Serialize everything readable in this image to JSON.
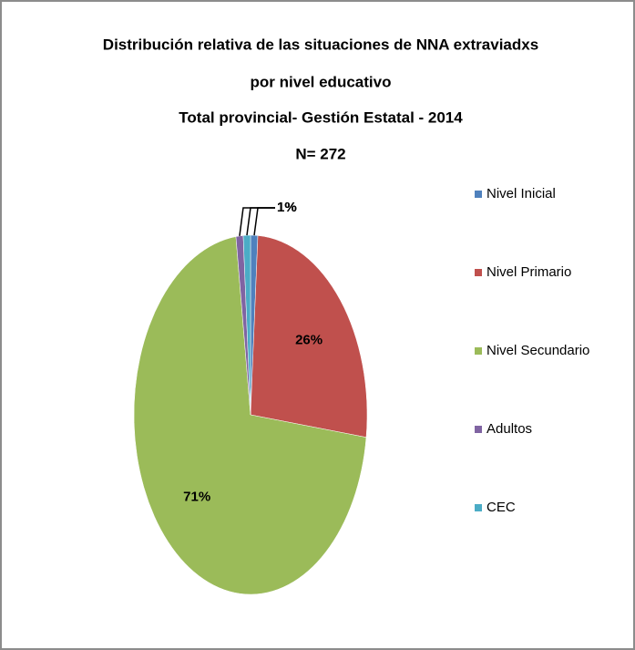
{
  "chart_data": {
    "type": "pie",
    "title": [
      "Distribución relativa de las situaciones de  NNA extraviadxs",
      "por nivel educativo",
      "Total provincial- Gestión Estatal - 2014",
      "N= 272"
    ],
    "categories": [
      "Nivel Inicial",
      "Nivel Primario",
      "Nivel Secundario",
      "Adultos",
      "CEC"
    ],
    "values": [
      1,
      26,
      71,
      1,
      1
    ],
    "value_labels": [
      "1%",
      "26%",
      "71%",
      "1%",
      "1%"
    ],
    "colors": [
      "#4f81bd",
      "#c0504d",
      "#9bbb59",
      "#8064a2",
      "#4bacc6"
    ],
    "legend": "right"
  }
}
